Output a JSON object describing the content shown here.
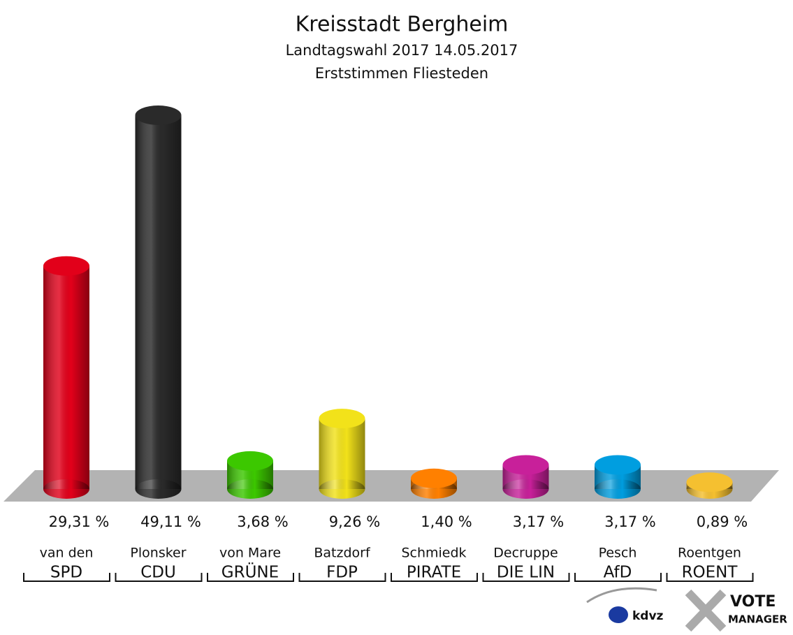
{
  "chart_data": {
    "type": "bar",
    "title": "Kreisstadt Bergheim",
    "subtitles": [
      "Landtagswahl 2017 14.05.2017",
      "Erststimmen Fliesteden"
    ],
    "categories": [
      "SPD",
      "CDU",
      "GRÜNE",
      "FDP",
      "PIRATE",
      "DIE LIN",
      "AfD",
      "ROENT"
    ],
    "candidates": [
      "van den",
      "Plonsker",
      "von Mare",
      "Batzdorf",
      "Schmiedk",
      "Decruppe",
      "Pesch",
      "Roentgen"
    ],
    "values": [
      29.31,
      49.11,
      3.68,
      9.26,
      1.4,
      3.17,
      3.17,
      0.89
    ],
    "value_labels": [
      "29,31 %",
      "49,11 %",
      "3,68 %",
      "9,26 %",
      "1,40 %",
      "3,17 %",
      "3,17 %",
      "0,89 %"
    ],
    "colors": [
      "#e2001a",
      "#2a2a2a",
      "#3cc800",
      "#f2e21a",
      "#ff8000",
      "#c8209a",
      "#009ee0",
      "#f5c030"
    ],
    "logo": {
      "left": "kdvz",
      "right": [
        "VOTE",
        "MANAGER"
      ]
    }
  }
}
